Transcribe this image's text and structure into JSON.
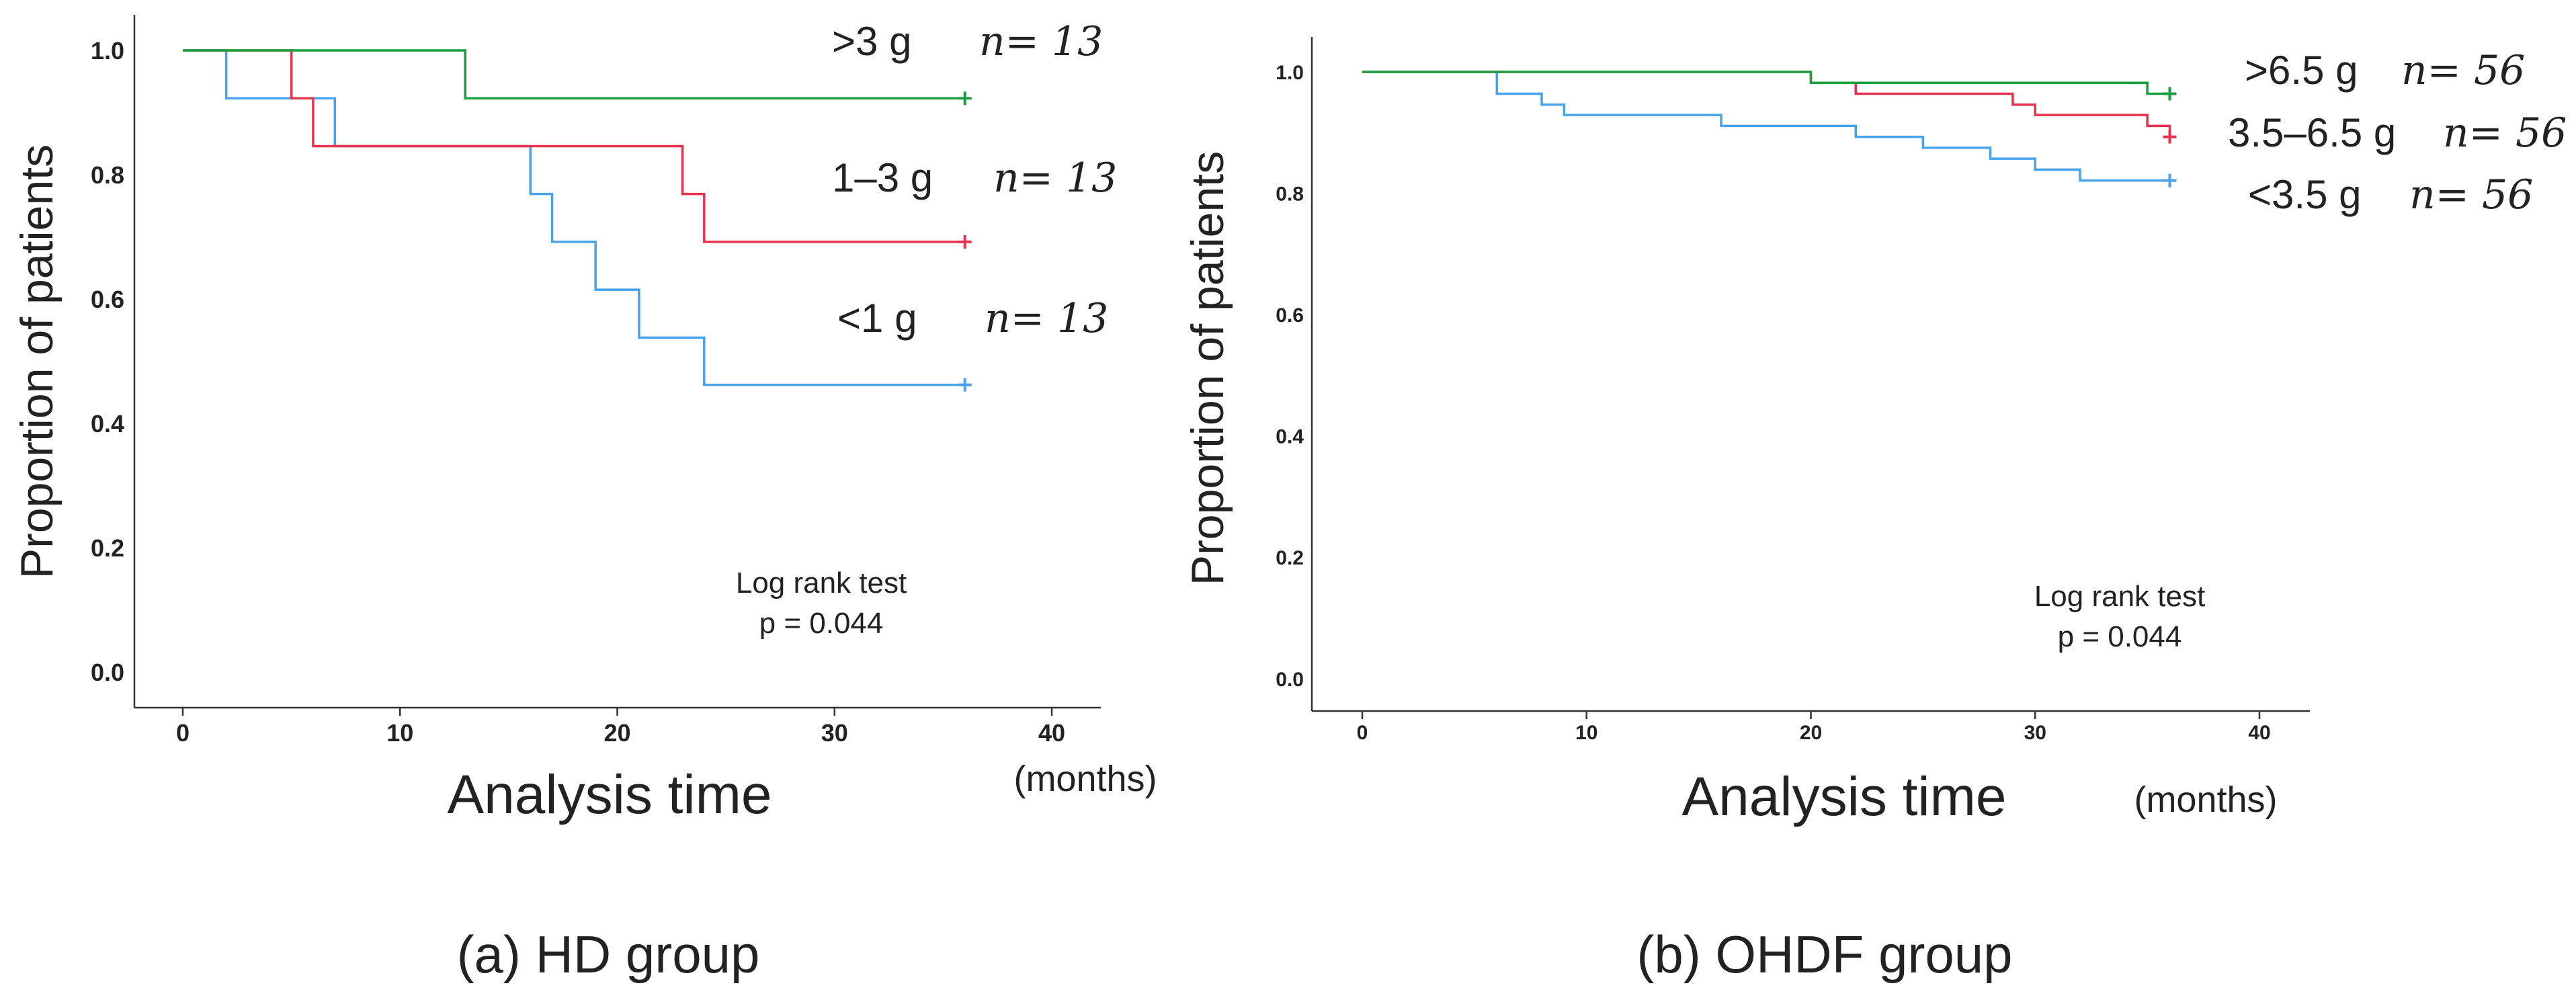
{
  "panels": [
    {
      "caption": "(a) HD group",
      "months_label": "(months)",
      "test_label": "Log rank test",
      "p_text": "p = 0.044",
      "legend": [
        {
          "label": ">3 g",
          "n_text": "n= 13"
        },
        {
          "label": "1–3 g",
          "n_text": "n= 13"
        },
        {
          "label": "<1 g",
          "n_text": "n= 13"
        }
      ]
    },
    {
      "caption": "(b) OHDF group",
      "months_label": "(months)",
      "test_label": "Log rank test",
      "p_text": "p = 0.044",
      "legend": [
        {
          "label": ">6.5 g",
          "n_text": "n= 56"
        },
        {
          "label": "3.5–6.5 g",
          "n_text": "n= 56"
        },
        {
          "label": "<3.5 g",
          "n_text": "n= 56"
        }
      ]
    }
  ],
  "chart_data": [
    {
      "type": "line",
      "step": true,
      "title": "(a) HD group",
      "xlabel": "Analysis time",
      "ylabel": "Proportion of patients",
      "xlim": [
        0,
        40
      ],
      "ylim": [
        0,
        1.0
      ],
      "xticks": [
        "0",
        "10",
        "20",
        "30",
        "40"
      ],
      "yticks": [
        "0.0",
        "0.2",
        "0.4",
        "0.6",
        "0.8",
        "1.0"
      ],
      "grid": false,
      "series": [
        {
          "name": ">3 g",
          "color": "#1a9e3e",
          "x": [
            0,
            13,
            36
          ],
          "y": [
            1.0,
            0.923,
            0.923
          ]
        },
        {
          "name": "1–3 g",
          "color": "#e8304f",
          "x": [
            0,
            5,
            6,
            23,
            24,
            36
          ],
          "y": [
            1.0,
            0.923,
            0.846,
            0.769,
            0.692,
            0.692
          ]
        },
        {
          "name": "<1 g",
          "color": "#4aa3ea",
          "x": [
            0,
            2,
            7,
            16,
            17,
            19,
            21,
            24,
            36
          ],
          "y": [
            1.0,
            0.923,
            0.846,
            0.769,
            0.692,
            0.615,
            0.538,
            0.462,
            0.462
          ]
        }
      ]
    },
    {
      "type": "line",
      "step": true,
      "title": "(b) OHDF group",
      "xlabel": "Analysis time",
      "ylabel": "Proportion of patients",
      "xlim": [
        0,
        40
      ],
      "ylim": [
        0,
        1.0
      ],
      "xticks": [
        "0",
        "10",
        "20",
        "30",
        "40"
      ],
      "yticks": [
        "0.0",
        "0.2",
        "0.4",
        "0.6",
        "0.8",
        "1.0"
      ],
      "grid": false,
      "series": [
        {
          "name": ">6.5 g",
          "color": "#1a9e3e",
          "x": [
            0,
            20,
            35,
            36
          ],
          "y": [
            1.0,
            0.982,
            0.964,
            0.964
          ]
        },
        {
          "name": "3.5–6.5 g",
          "color": "#e8304f",
          "x": [
            0,
            20,
            22,
            29,
            30,
            35,
            36
          ],
          "y": [
            1.0,
            0.982,
            0.964,
            0.946,
            0.929,
            0.911,
            0.893
          ]
        },
        {
          "name": "<3.5 g",
          "color": "#4aa3ea",
          "x": [
            0,
            6,
            8,
            9,
            16,
            22,
            25,
            28,
            30,
            32,
            36
          ],
          "y": [
            1.0,
            0.964,
            0.946,
            0.929,
            0.911,
            0.893,
            0.875,
            0.857,
            0.839,
            0.821,
            0.821
          ]
        }
      ]
    }
  ]
}
